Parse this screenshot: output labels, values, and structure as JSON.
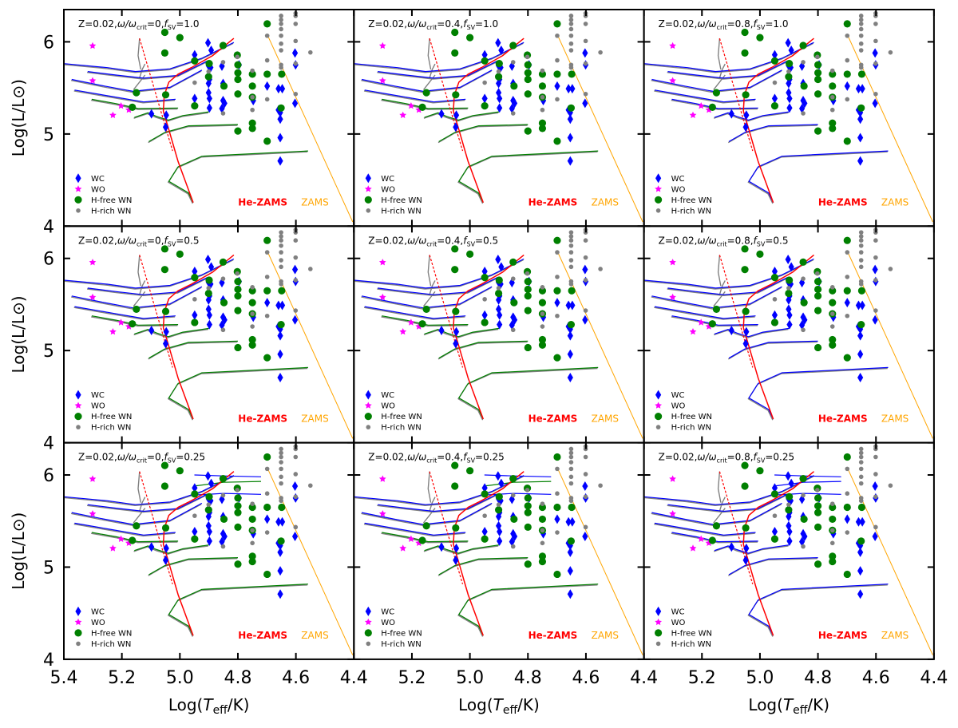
{
  "chart_data": {
    "type": "scatter",
    "title": "",
    "xlabel": "Log(T_eff/K)",
    "ylabel": "Log(L/L⊙)",
    "xlim": [
      5.4,
      4.4
    ],
    "ylim": [
      4.0,
      6.35
    ],
    "x_ticks": [
      "5.4",
      "5.2",
      "5.0",
      "4.8",
      "4.6",
      "4.4"
    ],
    "x_tick_values": [
      5.4,
      5.2,
      5.0,
      4.8,
      4.6,
      4.4
    ],
    "y_ticks": [
      "4",
      "5",
      "6"
    ],
    "y_tick_values": [
      4,
      5,
      6
    ],
    "grid": false,
    "legend_placement": "bottom-left",
    "legend": [
      {
        "name": "WC",
        "color": "#0000ff",
        "marker": "diamond"
      },
      {
        "name": "WO",
        "color": "#ff00ff",
        "marker": "star"
      },
      {
        "name": "H-free WN",
        "color": "#008000",
        "marker": "circle"
      },
      {
        "name": "H-rich WN",
        "color": "#808080",
        "marker": "small-circle"
      }
    ],
    "line_labels": {
      "he_zams": "He-ZAMS",
      "zams": "ZAMS"
    },
    "colors": {
      "he_zams": "#ff0000",
      "zams": "#ffa500",
      "track_blue": "#0000ff",
      "track_green": "#008000",
      "track_gray": "#808080"
    },
    "panels": [
      {
        "z": "Z=0.02",
        "omega": "0",
        "fsv": "1.0",
        "lower_color": "#008000"
      },
      {
        "z": "Z=0.02",
        "omega": "0.4",
        "fsv": "1.0",
        "lower_color": "#008000"
      },
      {
        "z": "Z=0.02",
        "omega": "0.8",
        "fsv": "1.0",
        "lower_color": "#0000ff"
      },
      {
        "z": "Z=0.02",
        "omega": "0",
        "fsv": "0.5",
        "lower_color": "#008000"
      },
      {
        "z": "Z=0.02",
        "omega": "0.4",
        "fsv": "0.5",
        "lower_color": "#008000"
      },
      {
        "z": "Z=0.02",
        "omega": "0.8",
        "fsv": "0.5",
        "lower_color": "#0000ff"
      },
      {
        "z": "Z=0.02",
        "omega": "0",
        "fsv": "0.25",
        "lower_color": "#008000"
      },
      {
        "z": "Z=0.02",
        "omega": "0.4",
        "fsv": "0.25",
        "lower_color": "#008000"
      },
      {
        "z": "Z=0.02",
        "omega": "0.8",
        "fsv": "0.25",
        "lower_color": "#0000ff"
      }
    ],
    "series": [
      {
        "name": "WC",
        "points": [
          [
            4.903,
            5.989
          ],
          [
            4.892,
            5.908
          ],
          [
            4.949,
            5.859
          ],
          [
            4.901,
            5.741
          ],
          [
            4.855,
            5.736
          ],
          [
            4.796,
            5.75
          ],
          [
            4.894,
            5.721
          ],
          [
            4.898,
            5.592
          ],
          [
            4.901,
            5.549
          ],
          [
            4.851,
            5.549
          ],
          [
            4.699,
            5.52
          ],
          [
            4.66,
            5.491
          ],
          [
            4.647,
            5.491
          ],
          [
            4.901,
            5.448
          ],
          [
            4.851,
            5.362
          ],
          [
            4.846,
            5.333
          ],
          [
            4.949,
            5.385
          ],
          [
            4.898,
            5.385
          ],
          [
            4.898,
            5.282
          ],
          [
            4.855,
            5.276
          ],
          [
            4.747,
            5.362
          ],
          [
            4.66,
            5.261
          ],
          [
            4.654,
            5.233
          ],
          [
            4.654,
            5.161
          ],
          [
            4.603,
            5.333
          ],
          [
            4.603,
            5.879
          ],
          [
            4.601,
            5.75
          ],
          [
            5.098,
            5.218
          ],
          [
            5.047,
            5.204
          ],
          [
            5.049,
            5.075
          ],
          [
            4.654,
            4.96
          ],
          [
            4.654,
            4.707
          ]
        ]
      },
      {
        "name": "WO",
        "points": [
          [
            5.301,
            5.957
          ],
          [
            5.301,
            5.578
          ],
          [
            5.203,
            5.305
          ],
          [
            5.176,
            5.261
          ],
          [
            5.231,
            5.204
          ]
        ]
      },
      {
        "name": "H-free WN",
        "points": [
          [
            4.699,
            6.195
          ],
          [
            5.052,
            6.103
          ],
          [
            5.0,
            6.046
          ],
          [
            5.052,
            5.879
          ],
          [
            4.851,
            5.96
          ],
          [
            4.802,
            5.856
          ],
          [
            4.8,
            5.75
          ],
          [
            4.899,
            5.764
          ],
          [
            4.949,
            5.793
          ],
          [
            4.901,
            5.621
          ],
          [
            4.8,
            5.664
          ],
          [
            4.8,
            5.592
          ],
          [
            4.75,
            5.649
          ],
          [
            4.699,
            5.649
          ],
          [
            4.649,
            5.649
          ],
          [
            4.75,
            5.52
          ],
          [
            4.75,
            5.399
          ],
          [
            4.8,
            5.434
          ],
          [
            4.949,
            5.305
          ],
          [
            5.049,
            5.425
          ],
          [
            5.15,
            5.448
          ],
          [
            5.164,
            5.29
          ],
          [
            4.651,
            5.282
          ],
          [
            4.75,
            5.118
          ],
          [
            4.75,
            5.06
          ],
          [
            4.8,
            5.032
          ],
          [
            4.699,
            4.922
          ],
          [
            4.848,
            5.52
          ]
        ]
      },
      {
        "name": "H-rich WN",
        "points": [
          [
            4.651,
            6.282
          ],
          [
            4.651,
            6.239
          ],
          [
            4.651,
            6.195
          ],
          [
            4.651,
            6.138
          ],
          [
            4.651,
            6.066
          ],
          [
            4.651,
            5.98
          ],
          [
            4.651,
            5.908
          ],
          [
            4.651,
            5.75
          ],
          [
            4.651,
            5.721
          ],
          [
            4.601,
            6.31
          ],
          [
            4.601,
            6.282
          ],
          [
            4.601,
            6.195
          ],
          [
            4.601,
            6.009
          ],
          [
            4.601,
            5.764
          ],
          [
            4.601,
            5.434
          ],
          [
            4.699,
            6.066
          ],
          [
            4.699,
            5.799
          ],
          [
            4.55,
            5.885
          ],
          [
            4.75,
            5.687
          ],
          [
            4.75,
            5.261
          ],
          [
            4.851,
            5.779
          ],
          [
            4.851,
            5.224
          ],
          [
            4.802,
            5.836
          ],
          [
            4.901,
            5.678
          ],
          [
            4.949,
            5.557
          ],
          [
            4.699,
            5.376
          ],
          [
            4.75,
            5.399
          ]
        ]
      }
    ],
    "he_zams_line": [
      [
        4.954,
        4.256
      ],
      [
        5.006,
        4.701
      ],
      [
        5.038,
        5.046
      ],
      [
        5.057,
        5.247
      ],
      [
        5.054,
        5.42
      ],
      [
        5.038,
        5.563
      ],
      [
        5.006,
        5.649
      ],
      [
        4.96,
        5.721
      ],
      [
        4.887,
        5.851
      ],
      [
        4.814,
        6.037
      ]
    ],
    "he_zams_dashed": [
      [
        5.139,
        6.037
      ],
      [
        5.052,
        5.103
      ],
      [
        5.025,
        4.816
      ]
    ],
    "zams_line": [
      [
        4.699,
        6.08
      ],
      [
        4.404,
        4.046
      ]
    ],
    "tracks_upper": [
      [
        [
          5.4,
          5.764
        ],
        [
          5.25,
          5.72
        ],
        [
          5.153,
          5.678
        ],
        [
          5.034,
          5.707
        ],
        [
          4.924,
          5.822
        ],
        [
          4.814,
          5.994
        ]
      ],
      [
        [
          5.318,
          5.678
        ],
        [
          5.22,
          5.64
        ],
        [
          5.125,
          5.606
        ],
        [
          5.006,
          5.635
        ],
        [
          4.905,
          5.793
        ]
      ],
      [
        [
          5.373,
          5.592
        ],
        [
          5.26,
          5.52
        ],
        [
          5.162,
          5.463
        ],
        [
          5.034,
          5.506
        ],
        [
          4.924,
          5.693
        ]
      ],
      [
        [
          5.363,
          5.477
        ],
        [
          5.24,
          5.41
        ],
        [
          5.125,
          5.348
        ],
        [
          5.015,
          5.376
        ]
      ]
    ],
    "tracks_gray_hooks": [
      [
        [
          5.135,
          5.7
        ],
        [
          5.144,
          5.85
        ],
        [
          5.139,
          6.037
        ]
      ],
      [
        [
          5.14,
          5.6
        ],
        [
          5.13,
          5.7
        ],
        [
          5.12,
          5.76
        ]
      ],
      [
        [
          5.16,
          5.48
        ],
        [
          5.14,
          5.56
        ],
        [
          5.12,
          5.64
        ]
      ]
    ],
    "tracks_lower": [
      [
        [
          5.304,
          5.376
        ],
        [
          5.22,
          5.33
        ],
        [
          5.144,
          5.276
        ],
        [
          5.006,
          5.282
        ]
      ],
      [
        [
          5.157,
          5.18
        ],
        [
          5.11,
          5.23
        ],
        [
          5.08,
          5.19
        ],
        [
          5.04,
          5.15
        ],
        [
          4.99,
          5.2
        ],
        [
          4.9,
          5.24
        ]
      ],
      [
        [
          5.107,
          4.917
        ],
        [
          5.052,
          5.017
        ],
        [
          4.97,
          5.089
        ],
        [
          4.8,
          5.103
        ]
      ],
      [
        [
          4.954,
          4.256
        ],
        [
          4.97,
          4.36
        ],
        [
          5.038,
          4.486
        ],
        [
          5.006,
          4.644
        ],
        [
          4.924,
          4.759
        ],
        [
          4.558,
          4.816
        ]
      ]
    ],
    "tracks_row3_extra": [
      [
        [
          4.95,
          6.0
        ],
        [
          4.85,
          5.99
        ],
        [
          4.72,
          5.98
        ]
      ],
      [
        [
          4.95,
          5.88
        ],
        [
          4.85,
          5.92
        ],
        [
          4.72,
          5.93
        ]
      ],
      [
        [
          4.96,
          5.78
        ],
        [
          4.85,
          5.8
        ],
        [
          4.72,
          5.79
        ]
      ]
    ]
  }
}
